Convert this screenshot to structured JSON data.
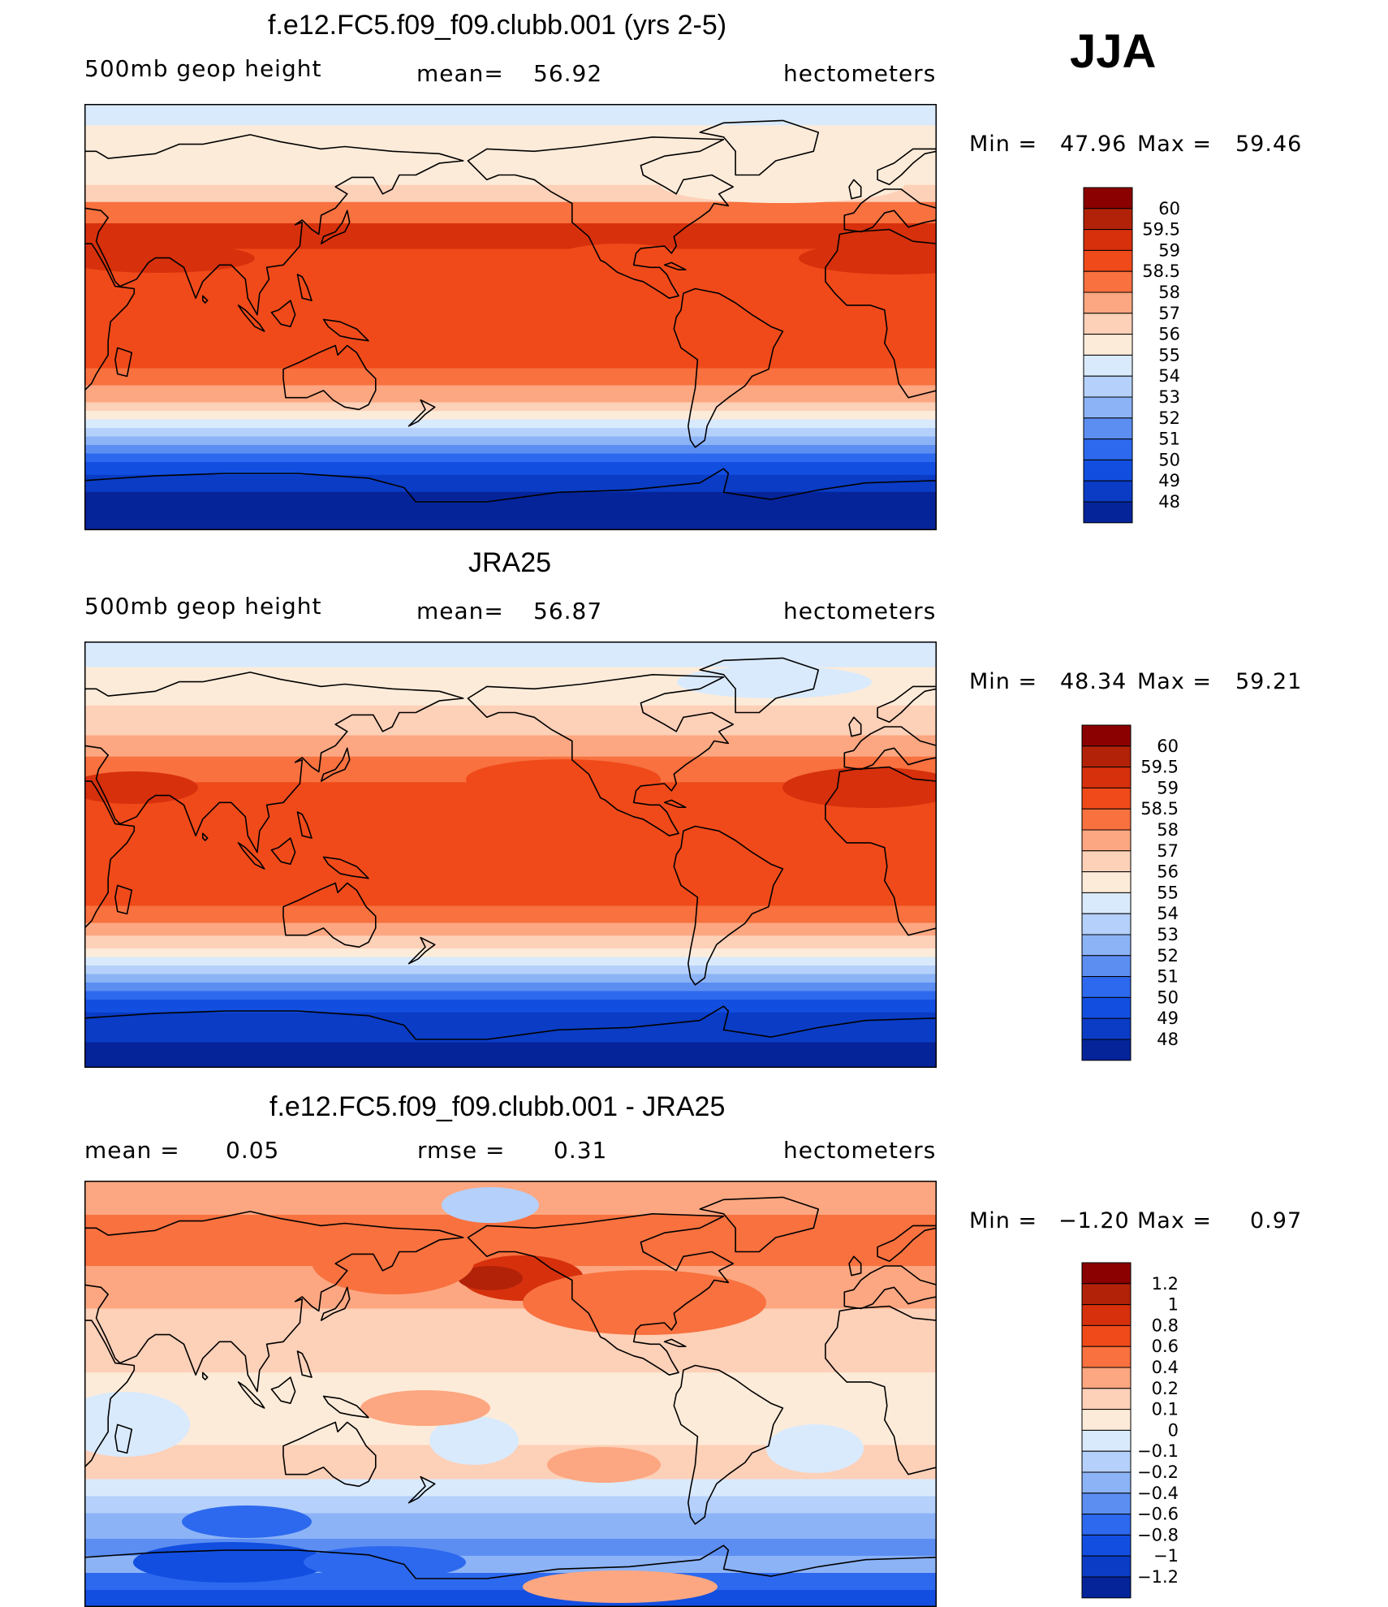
{
  "season": "JJA",
  "panels": [
    {
      "id": "model",
      "title": "f.e12.FC5.f09_f09.clubb.001 (yrs 2-5)",
      "left_label": "500mb geop height",
      "center_label": "mean=",
      "center_value": "56.92",
      "units": "hectometers",
      "min_label": "Min =",
      "min_value": "47.96",
      "max_label": "Max =",
      "max_value": "59.46",
      "colorbar_labels": [
        "60",
        "59.5",
        "59",
        "58.5",
        "58",
        "57",
        "56",
        "55",
        "54",
        "53",
        "52",
        "51",
        "50",
        "49",
        "48"
      ],
      "colorbar_colors": [
        "#8b0000",
        "#b22208",
        "#d7300c",
        "#f04a1a",
        "#f8713f",
        "#fca781",
        "#fdd0b8",
        "#fdebd9",
        "#d9eafc",
        "#b5d0fa",
        "#8cb3f6",
        "#5c8ef2",
        "#2d69ee",
        "#124ee0",
        "#0a3cc5",
        "#05249a"
      ]
    },
    {
      "id": "obs",
      "title": "JRA25",
      "left_label": "500mb geop height",
      "center_label": "mean=",
      "center_value": "56.87",
      "units": "hectometers",
      "min_label": "Min =",
      "min_value": "48.34",
      "max_label": "Max =",
      "max_value": "59.21",
      "colorbar_labels": [
        "60",
        "59.5",
        "59",
        "58.5",
        "58",
        "57",
        "56",
        "55",
        "54",
        "53",
        "52",
        "51",
        "50",
        "49",
        "48"
      ],
      "colorbar_colors": [
        "#8b0000",
        "#b22208",
        "#d7300c",
        "#f04a1a",
        "#f8713f",
        "#fca781",
        "#fdd0b8",
        "#fdebd9",
        "#d9eafc",
        "#b5d0fa",
        "#8cb3f6",
        "#5c8ef2",
        "#2d69ee",
        "#124ee0",
        "#0a3cc5",
        "#05249a"
      ]
    },
    {
      "id": "diff",
      "title": "f.e12.FC5.f09_f09.clubb.001 - JRA25",
      "left_label": "mean =",
      "left_value": "0.05",
      "center_label": "rmse =",
      "center_value": "0.31",
      "units": "hectometers",
      "min_label": "Min =",
      "min_value": "−1.20",
      "max_label": "Max =",
      "max_value": "0.97",
      "colorbar_labels": [
        "1.2",
        "1",
        "0.8",
        "0.6",
        "0.4",
        "0.2",
        "0.1",
        "0",
        "−0.1",
        "−0.2",
        "−0.4",
        "−0.6",
        "−0.8",
        "−1",
        "−1.2"
      ],
      "colorbar_colors": [
        "#8b0000",
        "#b22208",
        "#d7300c",
        "#f04a1a",
        "#f8713f",
        "#fca781",
        "#fdd0b8",
        "#fdebd9",
        "#d9eafc",
        "#b5d0fa",
        "#8cb3f6",
        "#5c8ef2",
        "#2d69ee",
        "#124ee0",
        "#0a3cc5",
        "#05249a"
      ]
    }
  ]
}
